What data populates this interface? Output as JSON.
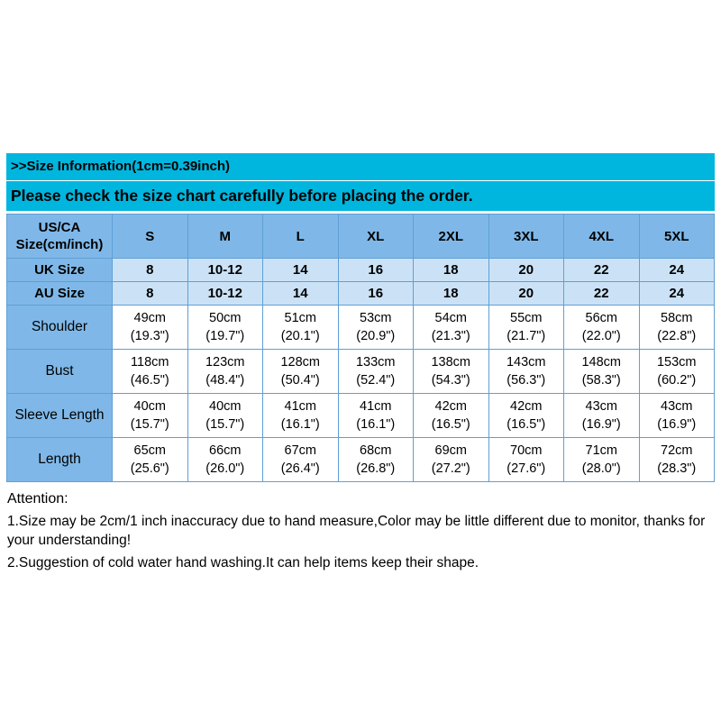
{
  "colors": {
    "banner_cyan": "#00b6de",
    "header_blue": "#7fb8e8",
    "row_pale_blue": "#cbe2f6",
    "border_blue": "#5f9fd6",
    "text": "#000000",
    "background": "#ffffff"
  },
  "header": {
    "title": ">>Size Information(1cm=0.39inch)",
    "subtitle": "Please check the size chart carefully before placing the order."
  },
  "table": {
    "corner": {
      "line1": "US/CA",
      "line2": "Size(cm/inch)"
    },
    "sizes": [
      "S",
      "M",
      "L",
      "XL",
      "2XL",
      "3XL",
      "4XL",
      "5XL"
    ],
    "uk": {
      "label": "UK Size",
      "values": [
        "8",
        "10-12",
        "14",
        "16",
        "18",
        "20",
        "22",
        "24"
      ]
    },
    "au": {
      "label": "AU  Size",
      "values": [
        "8",
        "10-12",
        "14",
        "16",
        "18",
        "20",
        "22",
        "24"
      ]
    },
    "shoulder": {
      "label": "Shoulder",
      "cm": [
        "49cm",
        "50cm",
        "51cm",
        "53cm",
        "54cm",
        "55cm",
        "56cm",
        "58cm"
      ],
      "inch": [
        "(19.3\")",
        "(19.7\")",
        "(20.1\")",
        "(20.9\")",
        "(21.3\")",
        "(21.7\")",
        "(22.0\")",
        "(22.8\")"
      ]
    },
    "bust": {
      "label": "Bust",
      "cm": [
        "118cm",
        "123cm",
        "128cm",
        "133cm",
        "138cm",
        "143cm",
        "148cm",
        "153cm"
      ],
      "inch": [
        "(46.5\")",
        "(48.4\")",
        "(50.4\")",
        "(52.4\")",
        "(54.3\")",
        "(56.3\")",
        "(58.3\")",
        "(60.2\")"
      ]
    },
    "sleeve": {
      "label": "Sleeve Length",
      "cm": [
        "40cm",
        "40cm",
        "41cm",
        "41cm",
        "42cm",
        "42cm",
        "43cm",
        "43cm"
      ],
      "inch": [
        "(15.7\")",
        "(15.7\")",
        "(16.1\")",
        "(16.1\")",
        "(16.5\")",
        "(16.5\")",
        "(16.9\")",
        "(16.9\")"
      ]
    },
    "length": {
      "label": "Length",
      "cm": [
        "65cm",
        "66cm",
        "67cm",
        "68cm",
        "69cm",
        "70cm",
        "71cm",
        "72cm"
      ],
      "inch": [
        "(25.6\")",
        "(26.0\")",
        "(26.4\")",
        "(26.8\")",
        "(27.2\")",
        "(27.6\")",
        "(28.0\")",
        "(28.3\")"
      ]
    }
  },
  "attention": {
    "title": "Attention:",
    "note1": "1.Size may be 2cm/1 inch inaccuracy due to hand measure,Color may be little different due to monitor, thanks for your understanding!",
    "note2": "2.Suggestion of cold water hand washing.It can help items keep their shape."
  }
}
